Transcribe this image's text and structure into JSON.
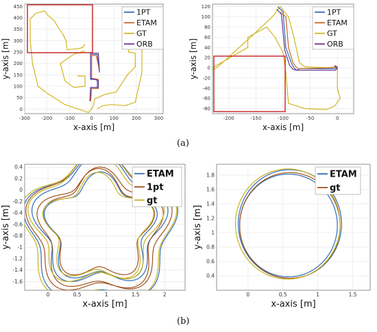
{
  "captions": {
    "a": "(a)",
    "b": "(b)"
  },
  "colors": {
    "blue": "#2f6db3",
    "orange": "#c8652a",
    "yellow": "#d1b51f",
    "purple": "#6a3492",
    "red": "#c7201f",
    "brown": "#a0521d",
    "gtyellow": "#c9b120"
  },
  "chart_data": [
    {
      "type": "line",
      "panel": "a-left",
      "xlabel": "x-axis [m]",
      "ylabel": "y-axis [m]",
      "xlim": [
        -300,
        320
      ],
      "ylim": [
        -20,
        460
      ],
      "xticks": [
        -300,
        -200,
        -100,
        0,
        100,
        200,
        300
      ],
      "yticks": [
        0,
        50,
        100,
        150,
        200,
        250,
        300,
        350,
        400,
        450
      ],
      "legend": [
        "1PT",
        "ETAM",
        "GT",
        "ORB"
      ],
      "legend_position": "top-right",
      "grid": true,
      "series": [
        {
          "name": "GT",
          "color": "#d1b51f",
          "x": [
            -30,
            -40,
            -60,
            -110,
            -115,
            -130,
            -145,
            -170,
            -195,
            -210,
            -250,
            -275,
            -275,
            -265,
            -240,
            -200,
            -120,
            -60,
            -15,
            -5
          ],
          "y": [
            285,
            270,
            265,
            260,
            300,
            330,
            350,
            390,
            410,
            430,
            420,
            395,
            300,
            200,
            100,
            70,
            20,
            0,
            -15,
            -5
          ]
        },
        {
          "name": "GT",
          "color": "#d1b51f",
          "x": [
            -5,
            5,
            15,
            60,
            110,
            160,
            195,
            195,
            165,
            165,
            215,
            225,
            225,
            195,
            150,
            90,
            50,
            25
          ],
          "y": [
            -5,
            10,
            45,
            65,
            75,
            150,
            185,
            245,
            250,
            280,
            300,
            315,
            160,
            30,
            15,
            20,
            15,
            0
          ]
        },
        {
          "name": "GT",
          "color": "#d1b51f",
          "x": [
            -65,
            -30,
            -30,
            -80,
            -120,
            -140,
            -80,
            -30
          ],
          "y": [
            145,
            145,
            100,
            95,
            125,
            200,
            240,
            255
          ]
        },
        {
          "name": "1PT",
          "color": "#2f6db3",
          "x": [
            -5,
            -5,
            25,
            25,
            -5,
            -5,
            25,
            35
          ],
          "y": [
            35,
            90,
            90,
            130,
            130,
            240,
            240,
            160
          ]
        },
        {
          "name": "ETAM",
          "color": "#c8652a",
          "x": [
            -5,
            0,
            30,
            30,
            0,
            0,
            20,
            35
          ],
          "y": [
            35,
            90,
            90,
            130,
            135,
            235,
            235,
            170
          ]
        },
        {
          "name": "ORB",
          "color": "#6a3492",
          "x": [
            -8,
            -5,
            30,
            30,
            -5,
            -5,
            30,
            35
          ],
          "y": [
            35,
            95,
            95,
            125,
            135,
            245,
            245,
            165
          ]
        }
      ]
    },
    {
      "type": "line",
      "panel": "a-right",
      "xlabel": "x-axis [m]",
      "ylabel": "y-axis [m]",
      "xlim": [
        -230,
        30
      ],
      "ylim": [
        -90,
        125
      ],
      "xticks": [
        -200,
        -150,
        -100,
        -50,
        0
      ],
      "yticks": [
        -80,
        -60,
        -40,
        -20,
        0,
        20,
        40,
        60,
        80,
        100,
        120
      ],
      "legend": [
        "1PT",
        "ETAM",
        "GT",
        "ORB"
      ],
      "legend_position": "top-right",
      "grid": true,
      "series": [
        {
          "name": "GT",
          "color": "#d1b51f",
          "x": [
            -230,
            -220,
            -160,
            -120,
            -105,
            -90,
            -80,
            -70,
            -60,
            -20,
            0,
            0,
            0,
            5,
            -5,
            -20,
            -60,
            -75,
            -90,
            -95,
            -100,
            -115,
            -130,
            -165,
            -165,
            -230
          ],
          "y": [
            -5,
            2,
            60,
            100,
            120,
            100,
            60,
            10,
            2,
            0,
            2,
            -20,
            -40,
            -60,
            -75,
            -82,
            -80,
            -75,
            -70,
            -10,
            30,
            60,
            80,
            60,
            40,
            0
          ]
        },
        {
          "name": "1PT",
          "color": "#2f6db3",
          "x": [
            -110,
            -100,
            -95,
            -85,
            -80,
            -75,
            -70,
            -5,
            0,
            -5
          ],
          "y": [
            120,
            110,
            40,
            10,
            0,
            -5,
            -2,
            -2,
            0,
            5
          ]
        },
        {
          "name": "ETAM",
          "color": "#c8652a",
          "x": [
            -105,
            -95,
            -90,
            -82,
            -75,
            -70,
            -10,
            0,
            -5
          ],
          "y": [
            110,
            100,
            40,
            10,
            0,
            -2,
            0,
            2,
            5
          ]
        },
        {
          "name": "ORB",
          "color": "#6a3492",
          "x": [
            -112,
            -103,
            -97,
            -88,
            -82,
            -75,
            -5,
            0,
            -5
          ],
          "y": [
            115,
            105,
            35,
            5,
            -3,
            -5,
            -5,
            -2,
            3
          ]
        }
      ]
    },
    {
      "type": "line",
      "panel": "b-left",
      "xlabel": "x-axis [m]",
      "ylabel": "y-axis [m]",
      "xlim": [
        -0.4,
        2.35
      ],
      "ylim": [
        -1.75,
        0.45
      ],
      "xticks": [
        0,
        0.5,
        1,
        1.5,
        2
      ],
      "yticks": [
        0.4,
        0.2,
        0,
        -0.2,
        -0.4,
        -0.6,
        -0.8,
        -1,
        -1.2,
        -1.4,
        -1.6
      ],
      "yticklabels": [
        "0.4",
        "0.2",
        "0",
        "-0.2",
        "-0.4",
        "-0.6",
        "-0.8",
        "-1",
        "-1.2",
        "-1.4",
        "-1.6"
      ],
      "xticklabels": [
        "0",
        "0.5",
        "1",
        "1.5",
        "2"
      ],
      "legend": [
        "ETAM",
        "1pt",
        "gt"
      ],
      "legend_position": "top-right",
      "grid": true,
      "series": [
        {
          "name": "ETAM",
          "color": "#2f6db3",
          "loop": true,
          "cx": 0.9,
          "cy": -0.65,
          "rx": 1.05,
          "ry": 1.05,
          "turns": 3,
          "spread": 0.2
        },
        {
          "name": "1pt",
          "color": "#a0521d",
          "loop": true,
          "cx": 0.88,
          "cy": -0.66,
          "rx": 1.0,
          "ry": 1.02,
          "turns": 3,
          "spread": 0.18
        },
        {
          "name": "gt",
          "color": "#c9b120",
          "loop": true,
          "cx": 0.85,
          "cy": -0.64,
          "rx": 1.05,
          "ry": 1.05,
          "turns": 3,
          "spread": 0.22
        }
      ]
    },
    {
      "type": "line",
      "panel": "b-right",
      "xlabel": "x-axis [m]",
      "ylabel": "y-axis [m]",
      "xlim": [
        -0.45,
        1.75
      ],
      "ylim": [
        0.2,
        1.95
      ],
      "xticks": [
        0,
        0.5,
        1,
        1.5
      ],
      "yticks": [
        0.4,
        0.6,
        0.8,
        1.0,
        1.2,
        1.4,
        1.6,
        1.8
      ],
      "xticklabels": [
        "0",
        "0.5",
        "1",
        "1.5"
      ],
      "yticklabels": [
        "0.4",
        "0.6",
        "0.8",
        "1",
        "1.2",
        "1.4",
        "1.6",
        "1.8"
      ],
      "legend": [
        "ETAM",
        "gt"
      ],
      "legend_position": "top-right",
      "grid": true,
      "series": [
        {
          "name": "ETAM",
          "color": "#2f6db3",
          "circle": true,
          "cx": 0.6,
          "cy": 1.12,
          "r": 0.74
        },
        {
          "name": "ETAM",
          "color": "#2f6db3",
          "circle": true,
          "cx": 0.58,
          "cy": 1.1,
          "r": 0.7
        },
        {
          "name": "gt",
          "color": "#a0521d",
          "circle": true,
          "cx": 0.6,
          "cy": 1.1,
          "r": 0.72
        },
        {
          "name": "gt",
          "color": "#c9b120",
          "circle": true,
          "cx": 0.57,
          "cy": 1.12,
          "r": 0.75
        }
      ]
    }
  ]
}
